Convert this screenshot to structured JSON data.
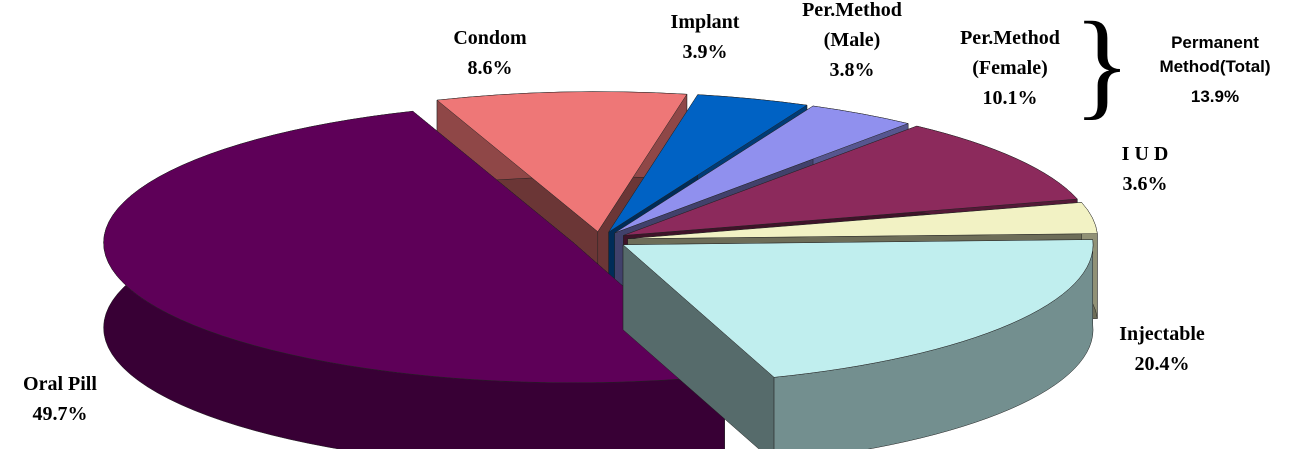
{
  "chart_data": {
    "type": "pie3d",
    "categories": [
      "Condom",
      "Implant",
      "Per.Method\n(Male)",
      "Per.Method\n(Female)",
      "I U D",
      "Injectable",
      "Oral Pill"
    ],
    "values": [
      8.6,
      3.9,
      3.8,
      10.1,
      3.6,
      20.4,
      49.7
    ],
    "value_labels": [
      "8.6%",
      "3.9%",
      "3.8%",
      "10.1%",
      "3.6%",
      "20.4%",
      "49.7%"
    ],
    "colors": [
      "#ee7777",
      "#0062c4",
      "#9090ee",
      "#8c2a5c",
      "#f2f2c4",
      "#c0eeee",
      "#5e0058"
    ],
    "annotation": {
      "label": "Permanent\nMethod(Total)",
      "value_label": "13.9%"
    }
  }
}
